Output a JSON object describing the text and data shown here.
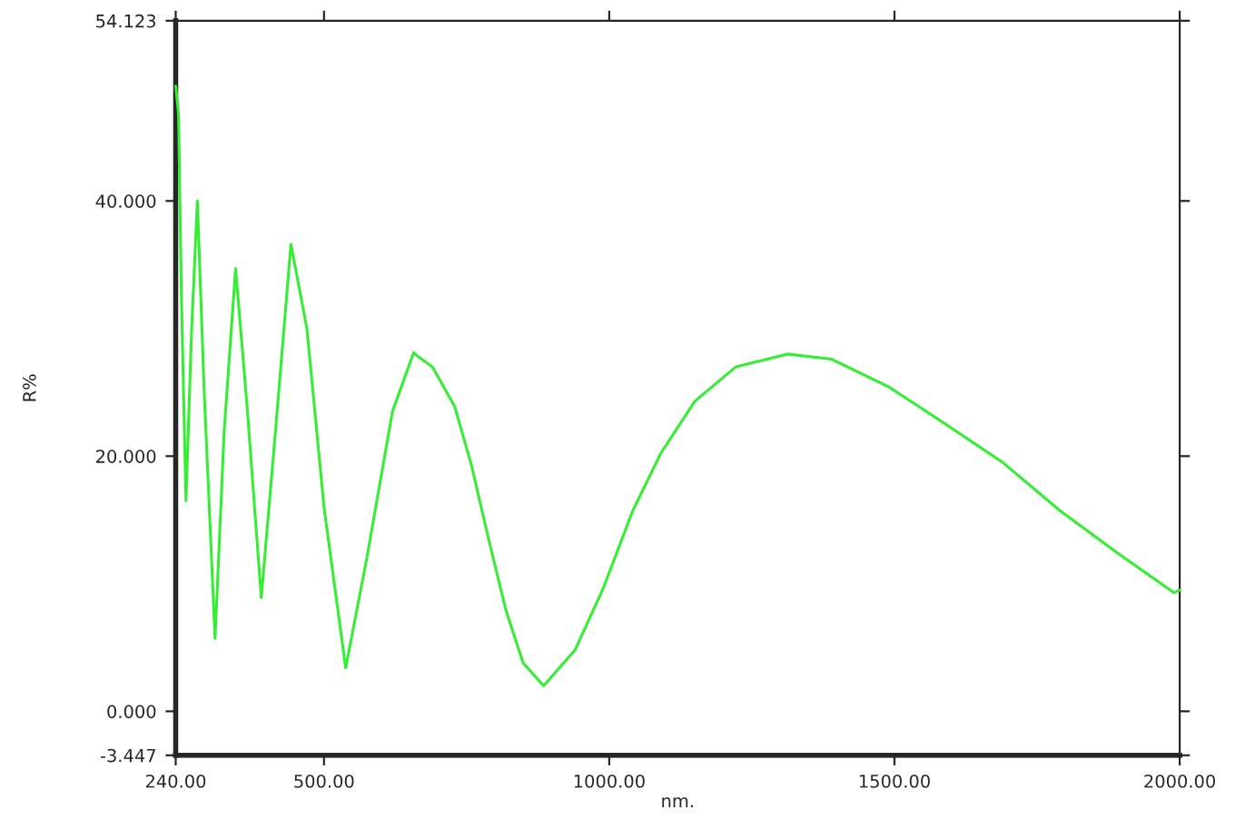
{
  "chart_data": {
    "type": "line",
    "xlabel": "nm.",
    "ylabel": "R%",
    "x": [
      240,
      245,
      250,
      258,
      268,
      278,
      290,
      309,
      325,
      345,
      365,
      390,
      415,
      442,
      470,
      500,
      538,
      575,
      620,
      657,
      668,
      690,
      729,
      759,
      789,
      819,
      849,
      885,
      940,
      990,
      1041,
      1090,
      1150,
      1222,
      1312,
      1390,
      1491,
      1590,
      1690,
      1791,
      1891,
      1990,
      2000
    ],
    "series": [
      {
        "color": "#33ee33",
        "values": [
          49.0,
          46.8,
          32.5,
          16.5,
          30.0,
          40.0,
          25.0,
          5.7,
          22.0,
          34.7,
          24.0,
          8.9,
          22.0,
          36.6,
          30.0,
          16.0,
          3.4,
          12.0,
          23.5,
          28.1,
          27.7,
          27.0,
          23.9,
          19.2,
          13.4,
          7.9,
          3.8,
          2.0,
          4.8,
          9.7,
          15.7,
          20.2,
          24.3,
          27.0,
          28.0,
          27.6,
          25.4,
          22.5,
          19.5,
          15.7,
          12.4,
          9.3,
          9.5
        ]
      }
    ],
    "xlim": [
      240,
      2000
    ],
    "ylim": [
      -3.447,
      54.123
    ],
    "xticks": [
      {
        "value": 240,
        "label": "240.00"
      },
      {
        "value": 500,
        "label": "500.00"
      },
      {
        "value": 1000,
        "label": "1000.00"
      },
      {
        "value": 1500,
        "label": "1500.00"
      },
      {
        "value": 2000,
        "label": "2000.00"
      }
    ],
    "yticks": [
      {
        "value": -3.447,
        "label": "-3.447"
      },
      {
        "value": 0,
        "label": "0.000"
      },
      {
        "value": 20,
        "label": "20.000"
      },
      {
        "value": 40,
        "label": "40.000"
      },
      {
        "value": 54.123,
        "label": "54.123"
      }
    ],
    "grid": false,
    "legend": false
  }
}
